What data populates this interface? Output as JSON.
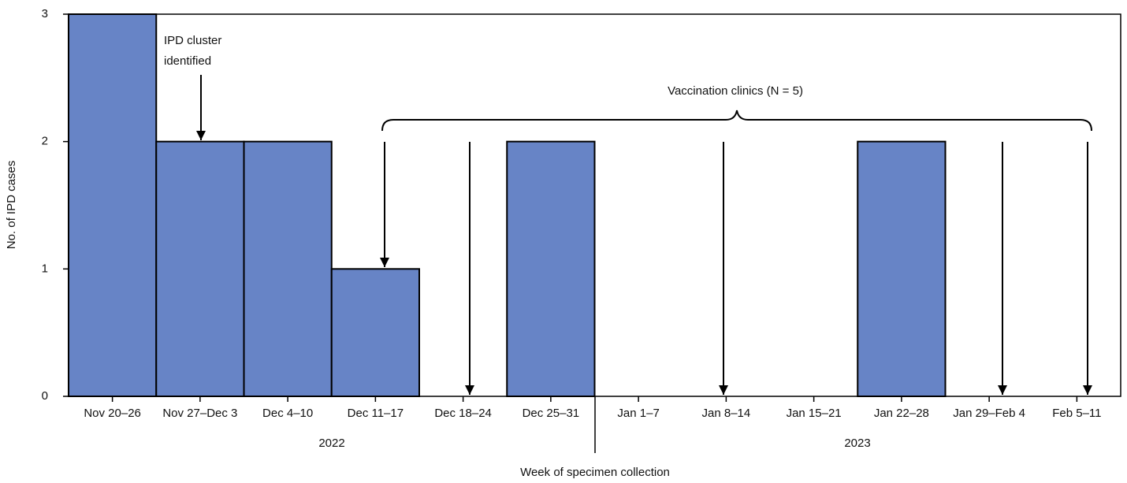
{
  "chart_data": {
    "type": "bar",
    "y_label": "No. of IPD cases",
    "x_label": "Week of specimen collection",
    "categories": [
      "Nov 20–26",
      "Nov 27–Dec 3",
      "Dec 4–10",
      "Dec 11–17",
      "Dec 18–24",
      "Dec 25–31",
      "Jan 1–7",
      "Jan 8–14",
      "Jan 15–21",
      "Jan 22–28",
      "Jan 29–Feb 4",
      "Feb 5–11"
    ],
    "values": [
      3,
      2,
      2,
      1,
      0,
      2,
      0,
      0,
      0,
      2,
      0,
      0
    ],
    "color": "#6784c6",
    "ylim": [
      0,
      3
    ],
    "yticks": [
      0,
      1,
      2,
      3
    ],
    "year_labels": [
      "2022",
      "2023"
    ],
    "annotations": {
      "cluster": [
        "IPD cluster",
        "identified"
      ],
      "clinics": "Vaccination clinics (N = 5)"
    }
  }
}
